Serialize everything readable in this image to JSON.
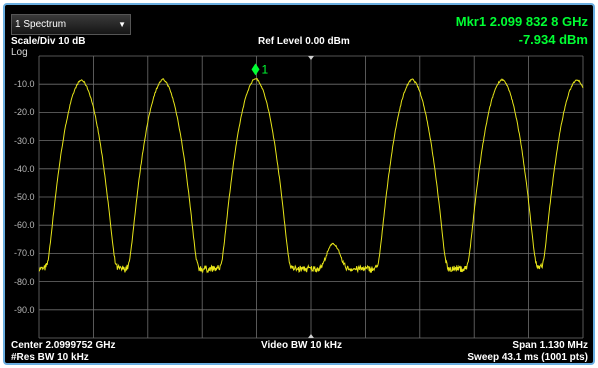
{
  "trace_menu": {
    "label": "1 Spectrum",
    "arrow_icon": "dropdown-arrow-icon"
  },
  "header": {
    "scale_div": "Scale/Div 10 dB",
    "log": "Log",
    "ref_level": "Ref Level 0.00 dBm"
  },
  "marker": {
    "freq_readout": "Mkr1  2.099 832 8 GHz",
    "amp_readout": "-7.934 dBm",
    "label": "1",
    "color": "#00ff33"
  },
  "footer": {
    "center": "Center 2.0999752 GHz",
    "res_bw": "#Res BW 10 kHz",
    "video_bw": "Video BW 10 kHz",
    "span": "Span 1.130 MHz",
    "sweep": "Sweep 43.1 ms (1001 pts)"
  },
  "colors": {
    "trace": "#e8e619",
    "grid": "#6f6f6f",
    "background": "#000000"
  },
  "chart_data": {
    "type": "line",
    "ylim": [
      -100,
      0
    ],
    "y_tick_labels": [
      "-10.0",
      "-20.0",
      "-30.0",
      "-40.0",
      "-50.0",
      "-60.0",
      "-70.0",
      "-80.0",
      "-90.0"
    ],
    "divisions_x": 10,
    "points": 1001,
    "noise_floor_dbm": -75.5,
    "peaks": [
      {
        "pos": 0.078,
        "amp": -8.5
      },
      {
        "pos": 0.228,
        "amp": -8.3
      },
      {
        "pos": 0.398,
        "amp": -7.9
      },
      {
        "pos": 0.541,
        "amp": -67.0
      },
      {
        "pos": 0.686,
        "amp": -8.3
      },
      {
        "pos": 0.851,
        "amp": -8.3
      },
      {
        "pos": 0.989,
        "amp": -8.3
      }
    ],
    "marker_pos": 0.398,
    "marker_amp": -7.934
  }
}
